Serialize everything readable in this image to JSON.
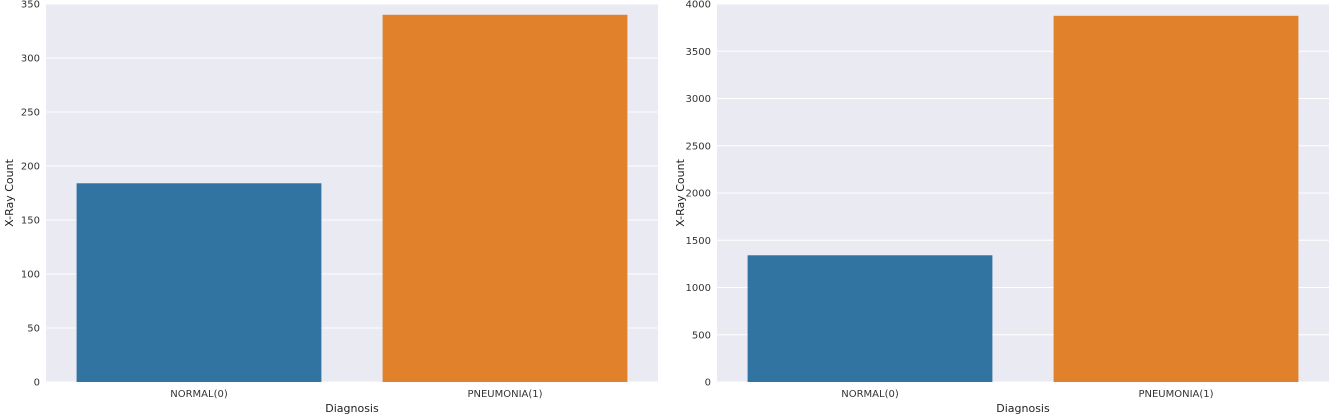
{
  "chart_data": [
    {
      "type": "bar",
      "categories": [
        "NORMAL(0)",
        "PNEUMONIA(1)"
      ],
      "values": [
        184,
        340
      ],
      "colors": [
        "#3274a1",
        "#e1812c"
      ],
      "xlabel": "Diagnosis",
      "ylabel": "X-Ray Count",
      "ylim": [
        0,
        350
      ],
      "yticks": [
        0,
        50,
        100,
        150,
        200,
        250,
        300,
        350
      ],
      "grid": true,
      "background": "#eaeaf2"
    },
    {
      "type": "bar",
      "categories": [
        "NORMAL(0)",
        "PNEUMONIA(1)"
      ],
      "values": [
        1341,
        3875
      ],
      "colors": [
        "#3274a1",
        "#e1812c"
      ],
      "xlabel": "Diagnosis",
      "ylabel": "X-Ray Count",
      "ylim": [
        0,
        4000
      ],
      "yticks": [
        0,
        500,
        1000,
        1500,
        2000,
        2500,
        3000,
        3500,
        4000
      ],
      "grid": true,
      "background": "#eaeaf2"
    }
  ]
}
